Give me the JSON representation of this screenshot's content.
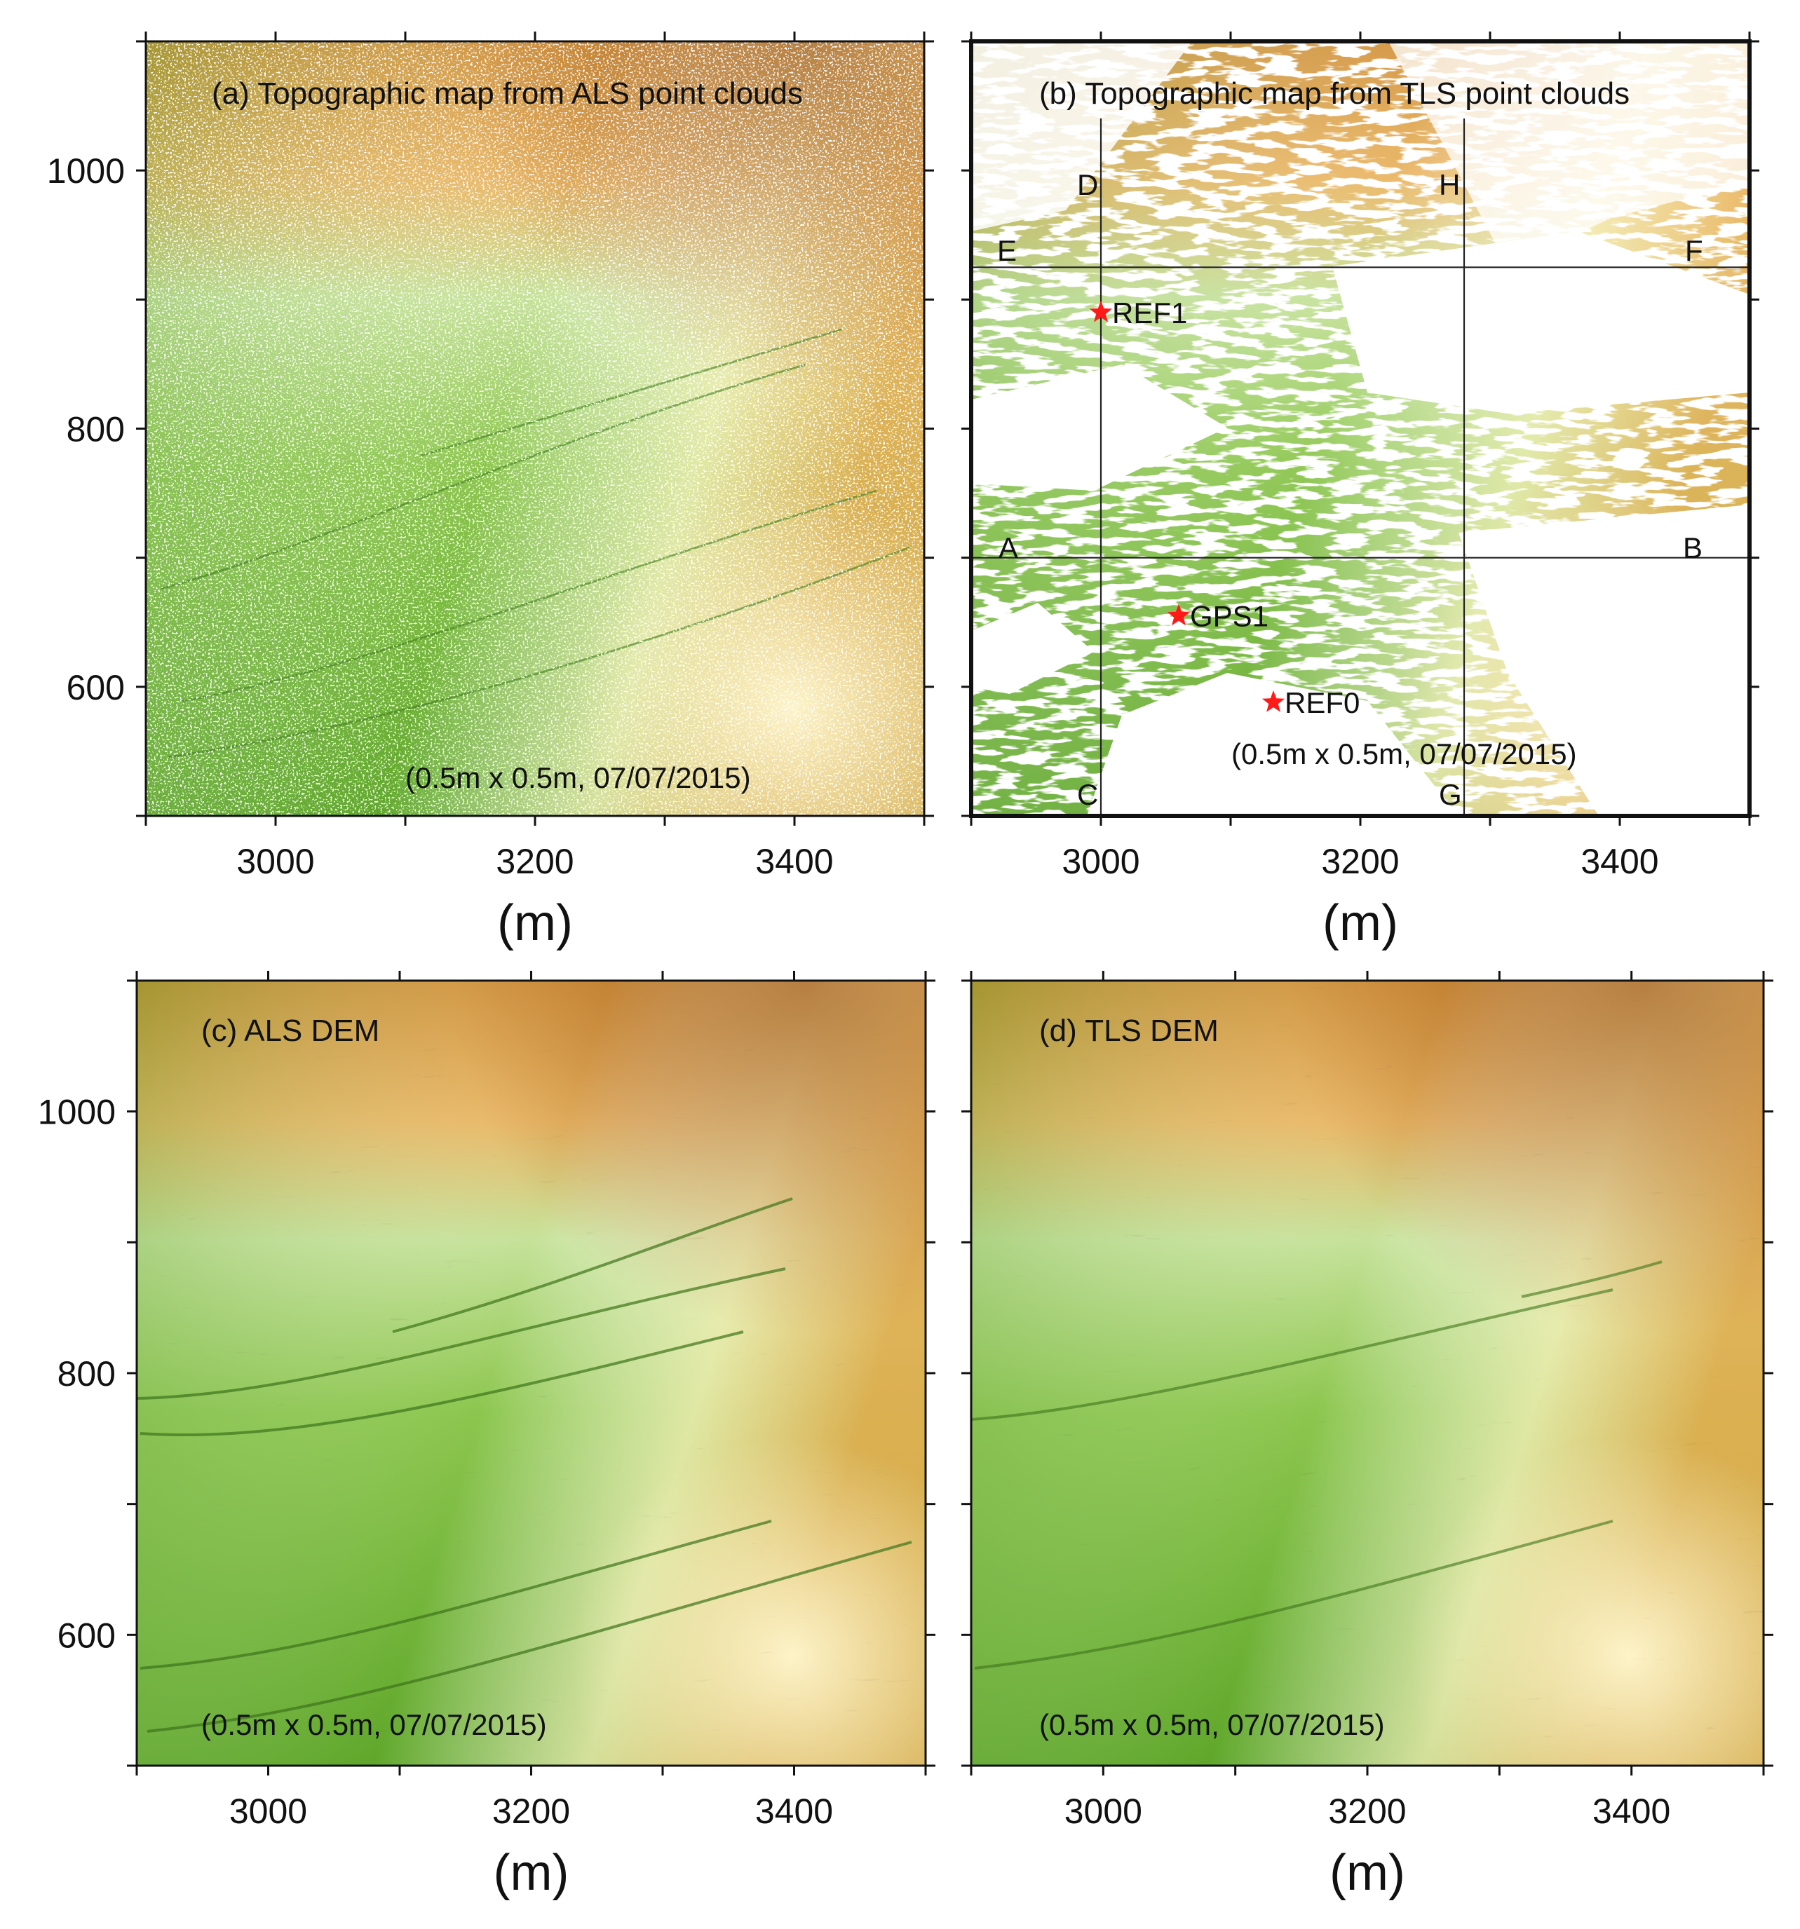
{
  "figure": {
    "description_free": true,
    "colors": {
      "green": "#5fae2a",
      "light_green": "#c8e89a",
      "cream": "#fbf3c0",
      "orange": "#e2a243",
      "brown": "#b8782f",
      "marker": "#ff1a1a",
      "line": "#222222"
    },
    "axes": {
      "x_range": [
        2900,
        3500
      ],
      "y_range": [
        500,
        1100
      ],
      "x_ticks": [
        3000,
        3200,
        3400
      ],
      "y_ticks": [
        600,
        800,
        1000
      ],
      "x_tick_labels": [
        "3000",
        "3200",
        "3400"
      ],
      "y_tick_labels": [
        "600",
        "800",
        "1000"
      ],
      "x_unit": "(m)"
    },
    "panels": [
      {
        "id": "a",
        "title": "(a) Topographic map from ALS point clouds",
        "note": "(0.5m x 0.5m, 07/07/2015)"
      },
      {
        "id": "b",
        "title": "(b) Topographic map from TLS point clouds",
        "note": "(0.5m x 0.5m, 07/07/2015)"
      },
      {
        "id": "c",
        "title": "(c) ALS DEM",
        "note": "(0.5m x 0.5m, 07/07/2015)"
      },
      {
        "id": "d",
        "title": "(d) TLS DEM",
        "note": "(0.5m x 0.5m, 07/07/2015)"
      }
    ],
    "profiles": [
      {
        "start_label": "A",
        "end_label": "B",
        "axis": "y",
        "value": 700
      },
      {
        "start_label": "E",
        "end_label": "F",
        "axis": "y",
        "value": 925
      },
      {
        "start_label": "C",
        "end_label": "D",
        "axis": "x",
        "value": 3000
      },
      {
        "start_label": "G",
        "end_label": "H",
        "axis": "x",
        "value": 3280
      }
    ],
    "stations": [
      {
        "name": "REF1",
        "x": 3000,
        "y": 890
      },
      {
        "name": "GPS1",
        "x": 3060,
        "y": 655
      },
      {
        "name": "REF0",
        "x": 3133,
        "y": 588
      }
    ]
  }
}
